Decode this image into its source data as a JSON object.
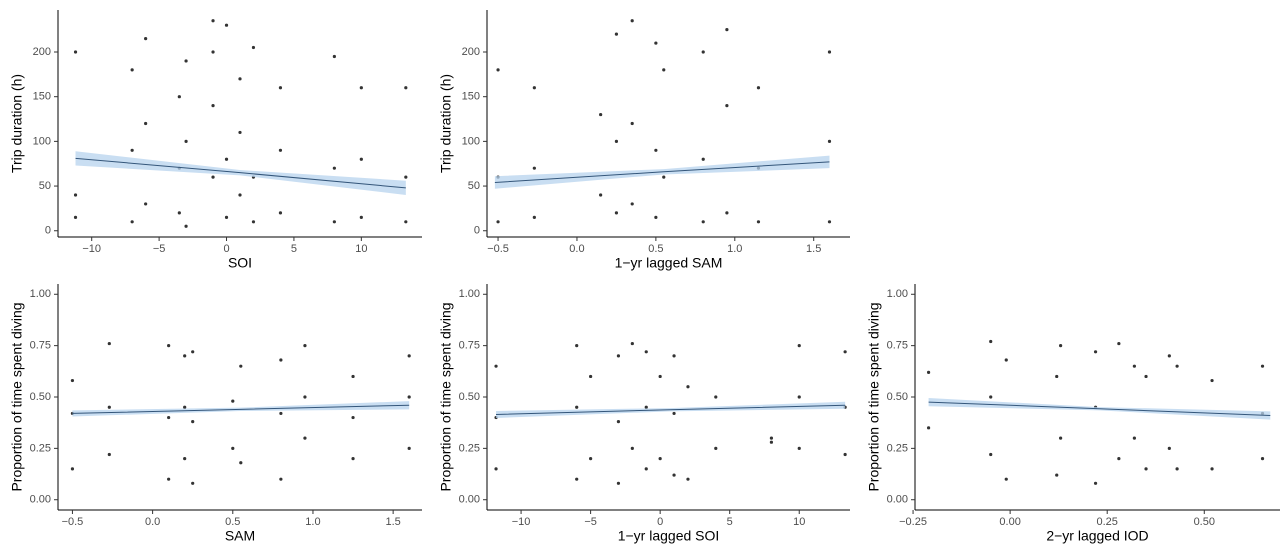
{
  "chart_data": [
    {
      "type": "scatter",
      "x_label": "SOI",
      "y_label": "Trip duration (h)",
      "color": "#333333",
      "fit_color": "#34567a",
      "band_color": "#b7d3ee",
      "xlim": [
        -12.5,
        14.5
      ],
      "ylim": [
        -7,
        247
      ],
      "xticks": [
        {
          "value": -10,
          "label": "−10"
        },
        {
          "value": -5,
          "label": "−5"
        },
        0,
        5,
        10
      ],
      "yticks": [
        0,
        50,
        100,
        150,
        200
      ],
      "x": [
        -11.2,
        -11.2,
        -11.2,
        -7,
        -7,
        -7,
        -6,
        -6,
        -6,
        -3.5,
        -3.5,
        -3.5,
        -3,
        -3,
        -3,
        -1,
        -1,
        -1,
        -1,
        0,
        0,
        0,
        1,
        1,
        1,
        2,
        2,
        2,
        4,
        4,
        4,
        8,
        8,
        8,
        10,
        10,
        10,
        13.3,
        13.3,
        13.3
      ],
      "y": [
        15,
        40,
        200,
        10,
        90,
        180,
        30,
        120,
        215,
        20,
        70,
        150,
        5,
        100,
        190,
        60,
        140,
        200,
        235,
        15,
        80,
        230,
        40,
        110,
        170,
        10,
        60,
        205,
        20,
        90,
        160,
        10,
        70,
        195,
        15,
        80,
        160,
        10,
        60,
        160
      ],
      "fit": {
        "x": [
          -11.2,
          1,
          13.3
        ],
        "y": [
          81,
          65,
          48
        ],
        "lower": [
          73,
          62,
          40
        ],
        "upper": [
          89,
          68,
          56
        ]
      }
    },
    {
      "type": "scatter",
      "x_label": "1−yr lagged SAM",
      "y_label": "Trip duration (h)",
      "color": "#333333",
      "fit_color": "#34567a",
      "band_color": "#b7d3ee",
      "xlim": [
        -0.57,
        1.73
      ],
      "ylim": [
        -7,
        247
      ],
      "xticks": [
        {
          "value": -0.5,
          "label": "−0.5"
        },
        {
          "value": 0,
          "label": "0.0"
        },
        0.5,
        {
          "value": 1,
          "label": "1.0"
        },
        1.5
      ],
      "yticks": [
        0,
        50,
        100,
        150,
        200
      ],
      "x": [
        -0.5,
        -0.5,
        -0.5,
        -0.27,
        -0.27,
        -0.27,
        0.15,
        0.15,
        0.25,
        0.25,
        0.25,
        0.35,
        0.35,
        0.35,
        0.5,
        0.5,
        0.5,
        0.55,
        0.55,
        0.8,
        0.8,
        0.8,
        0.95,
        0.95,
        0.95,
        1.15,
        1.15,
        1.15,
        1.6,
        1.6,
        1.6
      ],
      "y": [
        10,
        60,
        180,
        15,
        70,
        160,
        40,
        130,
        20,
        100,
        220,
        30,
        120,
        235,
        15,
        90,
        210,
        60,
        180,
        10,
        80,
        200,
        20,
        140,
        225,
        10,
        70,
        160,
        10,
        100,
        200
      ],
      "fit": {
        "x": [
          -0.52,
          0.55,
          1.6
        ],
        "y": [
          54,
          66,
          77
        ],
        "lower": [
          47,
          63,
          70
        ],
        "upper": [
          61,
          69,
          84
        ]
      }
    },
    {
      "type": "scatter",
      "x_label": "SAM",
      "y_label": "Proportion of time spent diving",
      "color": "#333333",
      "fit_color": "#34567a",
      "band_color": "#b7d3ee",
      "xlim": [
        -0.59,
        1.68
      ],
      "ylim": [
        -0.05,
        1.05
      ],
      "xticks": [
        {
          "value": -0.5,
          "label": "−0.5"
        },
        {
          "value": 0,
          "label": "0.0"
        },
        0.5,
        {
          "value": 1,
          "label": "1.0"
        },
        1.5
      ],
      "yticks": [
        {
          "value": 0,
          "label": "0.00"
        },
        0.25,
        {
          "value": 0.5,
          "label": "0.50"
        },
        0.75,
        {
          "value": 1,
          "label": "1.00"
        }
      ],
      "x": [
        -0.5,
        -0.5,
        -0.5,
        -0.27,
        -0.27,
        -0.27,
        0.1,
        0.1,
        0.1,
        0.2,
        0.2,
        0.2,
        0.25,
        0.25,
        0.25,
        0.5,
        0.5,
        0.55,
        0.55,
        0.8,
        0.8,
        0.8,
        0.95,
        0.95,
        0.95,
        1.25,
        1.25,
        1.25,
        1.6,
        1.6,
        1.6
      ],
      "y": [
        0.15,
        0.42,
        0.58,
        0.22,
        0.45,
        0.76,
        0.1,
        0.4,
        0.75,
        0.2,
        0.45,
        0.7,
        0.08,
        0.38,
        0.72,
        0.25,
        0.48,
        0.18,
        0.65,
        0.1,
        0.42,
        0.68,
        0.3,
        0.5,
        0.75,
        0.2,
        0.4,
        0.6,
        0.25,
        0.5,
        0.7
      ],
      "fit": {
        "x": [
          -0.5,
          0.55,
          1.6
        ],
        "y": [
          0.42,
          0.44,
          0.46
        ],
        "lower": [
          0.405,
          0.432,
          0.44
        ],
        "upper": [
          0.435,
          0.448,
          0.48
        ]
      }
    },
    {
      "type": "scatter",
      "x_label": "1−yr lagged SOI",
      "y_label": "Proportion of time spent diving",
      "color": "#333333",
      "fit_color": "#34567a",
      "band_color": "#b7d3ee",
      "xlim": [
        -12.45,
        13.65
      ],
      "ylim": [
        -0.05,
        1.05
      ],
      "xticks": [
        {
          "value": -10,
          "label": "−10"
        },
        {
          "value": -5,
          "label": "−5"
        },
        0,
        5,
        10
      ],
      "yticks": [
        {
          "value": 0,
          "label": "0.00"
        },
        0.25,
        {
          "value": 0.5,
          "label": "0.50"
        },
        0.75,
        {
          "value": 1,
          "label": "1.00"
        }
      ],
      "x": [
        -11.8,
        -11.8,
        -11.8,
        -6,
        -6,
        -6,
        -5,
        -5,
        -3,
        -3,
        -3,
        -2,
        -2,
        -1,
        -1,
        -1,
        0,
        0,
        1,
        1,
        1,
        2,
        2,
        4,
        4,
        8,
        8,
        10,
        10,
        10,
        13.3,
        13.3,
        13.3
      ],
      "y": [
        0.15,
        0.4,
        0.65,
        0.1,
        0.45,
        0.75,
        0.2,
        0.6,
        0.08,
        0.38,
        0.7,
        0.25,
        0.76,
        0.15,
        0.45,
        0.72,
        0.2,
        0.6,
        0.12,
        0.42,
        0.7,
        0.1,
        0.55,
        0.25,
        0.5,
        0.3,
        0.28,
        0.25,
        0.5,
        0.75,
        0.22,
        0.45,
        0.72
      ],
      "fit": {
        "x": [
          -11.8,
          0.7,
          13.3
        ],
        "y": [
          0.415,
          0.438,
          0.46
        ],
        "lower": [
          0.398,
          0.43,
          0.443
        ],
        "upper": [
          0.432,
          0.446,
          0.477
        ]
      }
    },
    {
      "type": "scatter",
      "x_label": "2−yr lagged IOD",
      "y_label": "Proportion of time spent diving",
      "color": "#333333",
      "fit_color": "#34567a",
      "band_color": "#b7d3ee",
      "xlim": [
        -0.245,
        0.695
      ],
      "ylim": [
        -0.05,
        1.05
      ],
      "xticks": [
        {
          "value": -0.25,
          "label": "−0.25"
        },
        {
          "value": 0,
          "label": "0.00"
        },
        0.25,
        {
          "value": 0.5,
          "label": "0.50"
        }
      ],
      "yticks": [
        {
          "value": 0,
          "label": "0.00"
        },
        0.25,
        {
          "value": 0.5,
          "label": "0.50"
        },
        0.75,
        {
          "value": 1,
          "label": "1.00"
        }
      ],
      "x": [
        -0.21,
        -0.21,
        -0.05,
        -0.05,
        -0.05,
        -0.01,
        -0.01,
        0.12,
        0.12,
        0.13,
        0.13,
        0.22,
        0.22,
        0.22,
        0.28,
        0.28,
        0.32,
        0.32,
        0.35,
        0.35,
        0.41,
        0.41,
        0.43,
        0.43,
        0.52,
        0.52,
        0.65,
        0.65,
        0.65
      ],
      "y": [
        0.35,
        0.62,
        0.22,
        0.5,
        0.77,
        0.1,
        0.68,
        0.12,
        0.6,
        0.3,
        0.75,
        0.08,
        0.45,
        0.72,
        0.2,
        0.76,
        0.3,
        0.65,
        0.15,
        0.6,
        0.25,
        0.7,
        0.15,
        0.65,
        0.15,
        0.58,
        0.2,
        0.42,
        0.65
      ],
      "fit": {
        "x": [
          -0.21,
          0.23,
          0.67
        ],
        "y": [
          0.475,
          0.443,
          0.41
        ],
        "lower": [
          0.455,
          0.435,
          0.39
        ],
        "upper": [
          0.495,
          0.451,
          0.43
        ]
      }
    }
  ]
}
